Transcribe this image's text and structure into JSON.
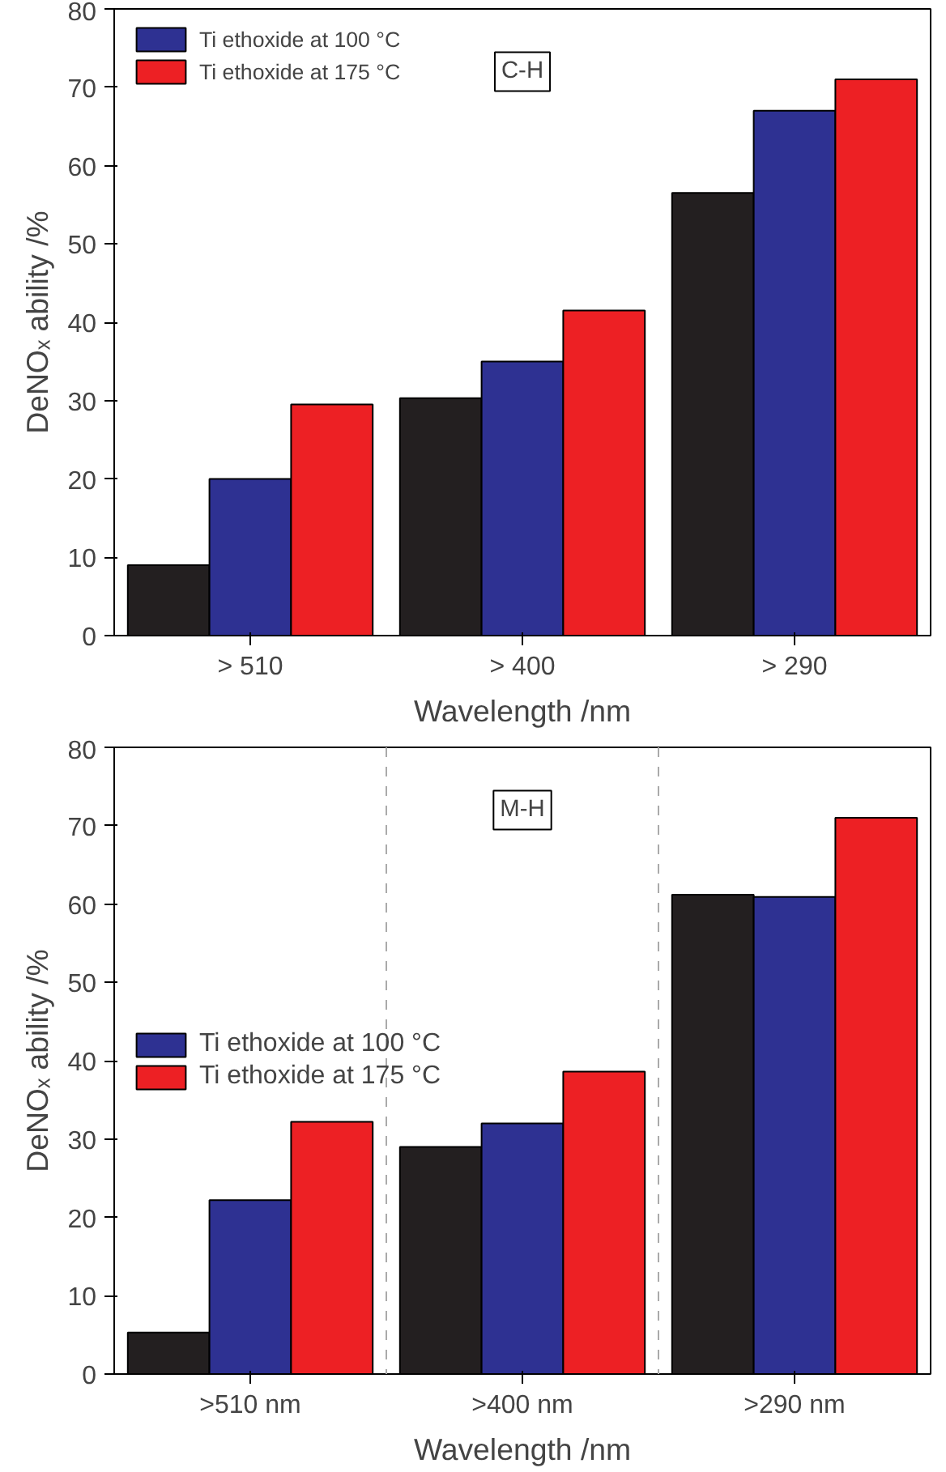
{
  "chart_data": [
    {
      "type": "bar",
      "categories": [
        "> 510",
        "> 400",
        "> 290"
      ],
      "xlabel": "Wavelength /nm",
      "ylabel": "DeNOₓ ability /%",
      "ylim": [
        0,
        80
      ],
      "yticks": [
        0,
        10,
        20,
        30,
        40,
        50,
        60,
        70,
        80
      ],
      "legend": "top left",
      "annotations": [
        "C-H"
      ],
      "series": [
        {
          "color": "#231f20",
          "values": [
            9,
            30.3,
            56.5
          ]
        },
        {
          "name": "Ti ethoxide at 100 °C",
          "color": "#2e3192",
          "values": [
            20,
            35,
            67
          ]
        },
        {
          "name": "Ti ethoxide at 175 °C",
          "color": "#ed2024",
          "values": [
            29.5,
            41.5,
            71
          ]
        }
      ]
    },
    {
      "type": "bar",
      "categories": [
        ">510 nm",
        ">400 nm",
        ">290 nm"
      ],
      "xlabel": "Wavelength /nm",
      "ylabel": "DeNOₓ ability /%",
      "ylim": [
        0,
        80
      ],
      "yticks": [
        0,
        10,
        20,
        30,
        40,
        50,
        60,
        70,
        80
      ],
      "legend": "left",
      "annotations": [
        "M-H"
      ],
      "series": [
        {
          "color": "#231f20",
          "values": [
            5.3,
            29,
            61.2
          ]
        },
        {
          "name": "Ti ethoxide at 100 °C",
          "color": "#2e3192",
          "values": [
            22.2,
            32,
            60.9
          ]
        },
        {
          "name": "Ti ethoxide at 175 °C",
          "color": "#ed2024",
          "values": [
            32.2,
            38.6,
            71
          ]
        }
      ]
    }
  ]
}
